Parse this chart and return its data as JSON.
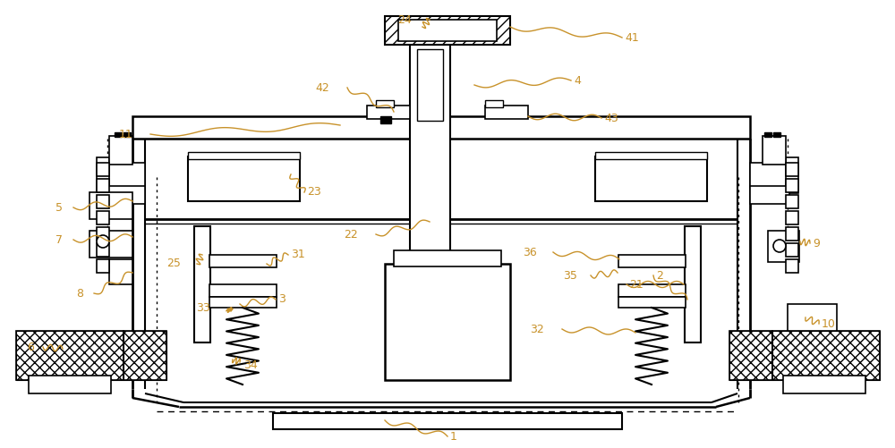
{
  "bg_color": "#ffffff",
  "line_color": "#000000",
  "label_color": "#c8922a",
  "fig_width": 10.0,
  "fig_height": 5.01,
  "dpi": 100
}
